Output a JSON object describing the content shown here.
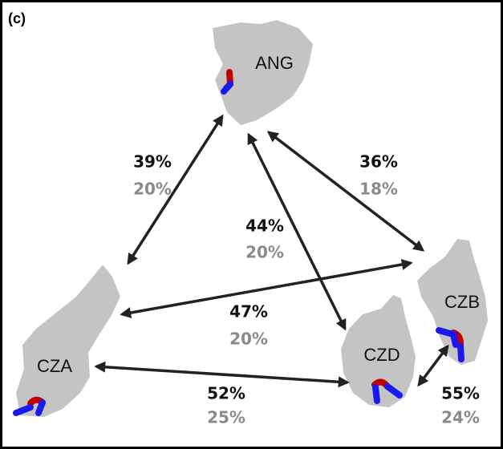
{
  "panel_label": "(c)",
  "nodes": [
    {
      "label": "ANG"
    },
    {
      "label": "CZA"
    },
    {
      "label": "CZB"
    },
    {
      "label": "CZD"
    }
  ],
  "edges": [
    {
      "top": "39%",
      "bottom": "20%"
    },
    {
      "top": "36%",
      "bottom": "18%"
    },
    {
      "top": "44%",
      "bottom": "20%"
    },
    {
      "top": "47%",
      "bottom": "20%"
    },
    {
      "top": "52%",
      "bottom": "25%"
    },
    {
      "top": "55%",
      "bottom": "24%"
    }
  ]
}
